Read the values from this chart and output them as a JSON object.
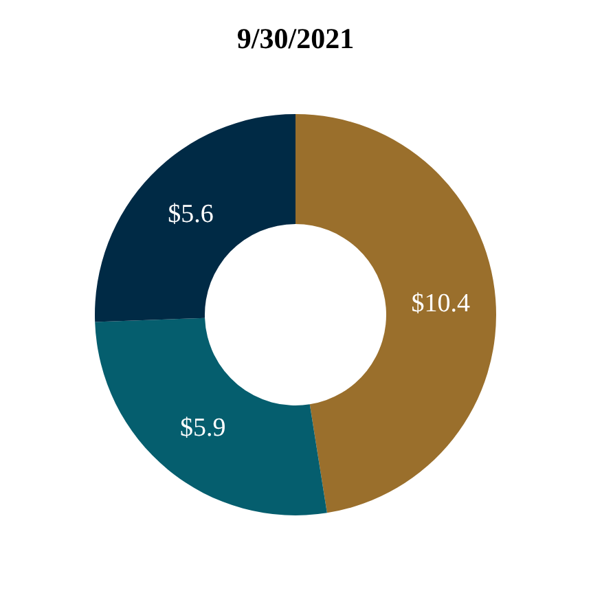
{
  "chart_data": {
    "type": "donut",
    "title": "9/30/2021",
    "categories": [
      null,
      null,
      null
    ],
    "values": [
      10.4,
      5.9,
      5.6
    ],
    "colors": [
      "#9a6f2c",
      "#055e6e",
      "#002a45"
    ],
    "value_labels": [
      "$10.4",
      "$5.9",
      "$5.6"
    ],
    "legend": false
  }
}
